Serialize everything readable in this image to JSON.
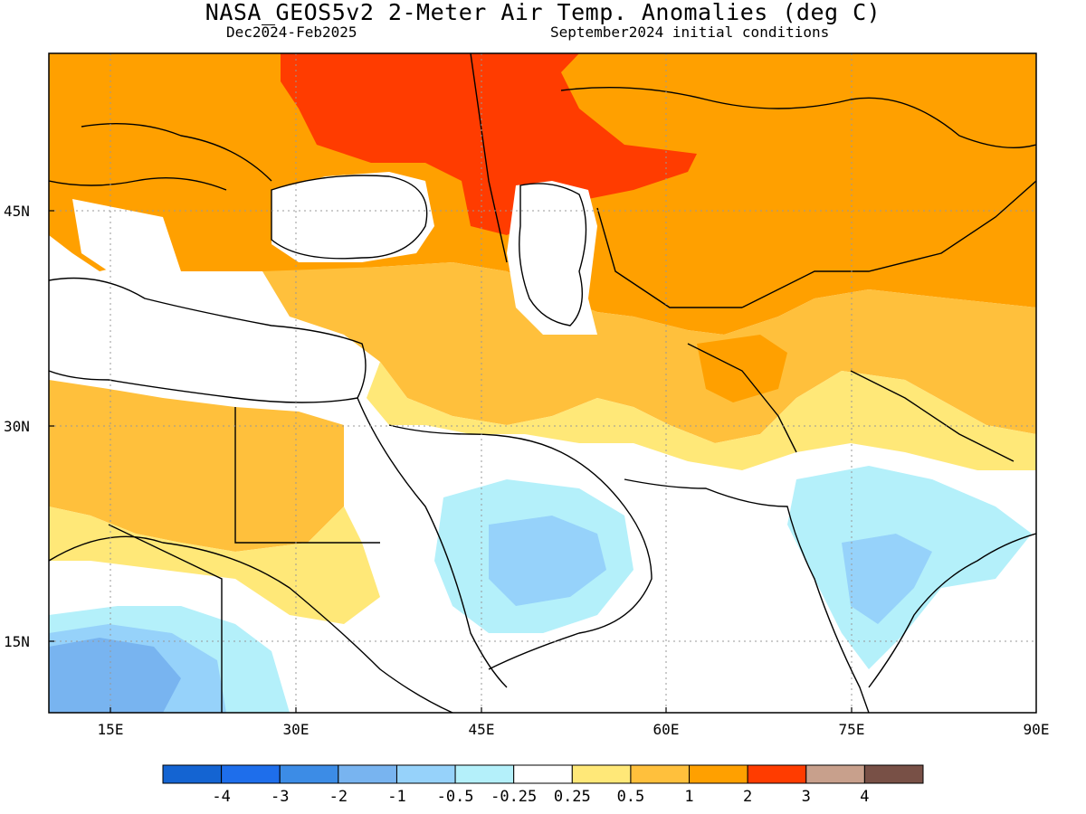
{
  "header": {
    "title": "NASA_GEOS5v2 2-Meter Air Temp. Anomalies (deg C)",
    "period": "Dec2024-Feb2025",
    "initial_conditions": "September2024 initial conditions"
  },
  "axes": {
    "lat_ticks": [
      {
        "value": 45,
        "label": "45N"
      },
      {
        "value": 30,
        "label": "30N"
      },
      {
        "value": 15,
        "label": "15N"
      }
    ],
    "lon_ticks": [
      {
        "value": 15,
        "label": "15E"
      },
      {
        "value": 30,
        "label": "30E"
      },
      {
        "value": 45,
        "label": "45E"
      },
      {
        "value": 60,
        "label": "60E"
      },
      {
        "value": 75,
        "label": "75E"
      },
      {
        "value": 90,
        "label": "90E"
      }
    ],
    "lon_range": [
      10,
      90
    ],
    "lat_range": [
      10,
      56
    ]
  },
  "colorbar": {
    "bins": [
      {
        "color": "#1464d2"
      },
      {
        "color": "#1e6eeb"
      },
      {
        "color": "#3c8ce6"
      },
      {
        "color": "#78b4f0"
      },
      {
        "color": "#96d2fa"
      },
      {
        "color": "#b4f0fa"
      },
      {
        "color": "#ffffff"
      },
      {
        "color": "#ffe878"
      },
      {
        "color": "#ffc03c"
      },
      {
        "color": "#ffa000"
      },
      {
        "color": "#ff3c00"
      },
      {
        "color": "#c8a08c"
      },
      {
        "color": "#785046"
      }
    ],
    "labels": [
      "-4",
      "-3",
      "-2",
      "-1",
      "-0.5",
      "-0.25",
      "0.25",
      "0.5",
      "1",
      "2",
      "3",
      "4"
    ]
  }
}
